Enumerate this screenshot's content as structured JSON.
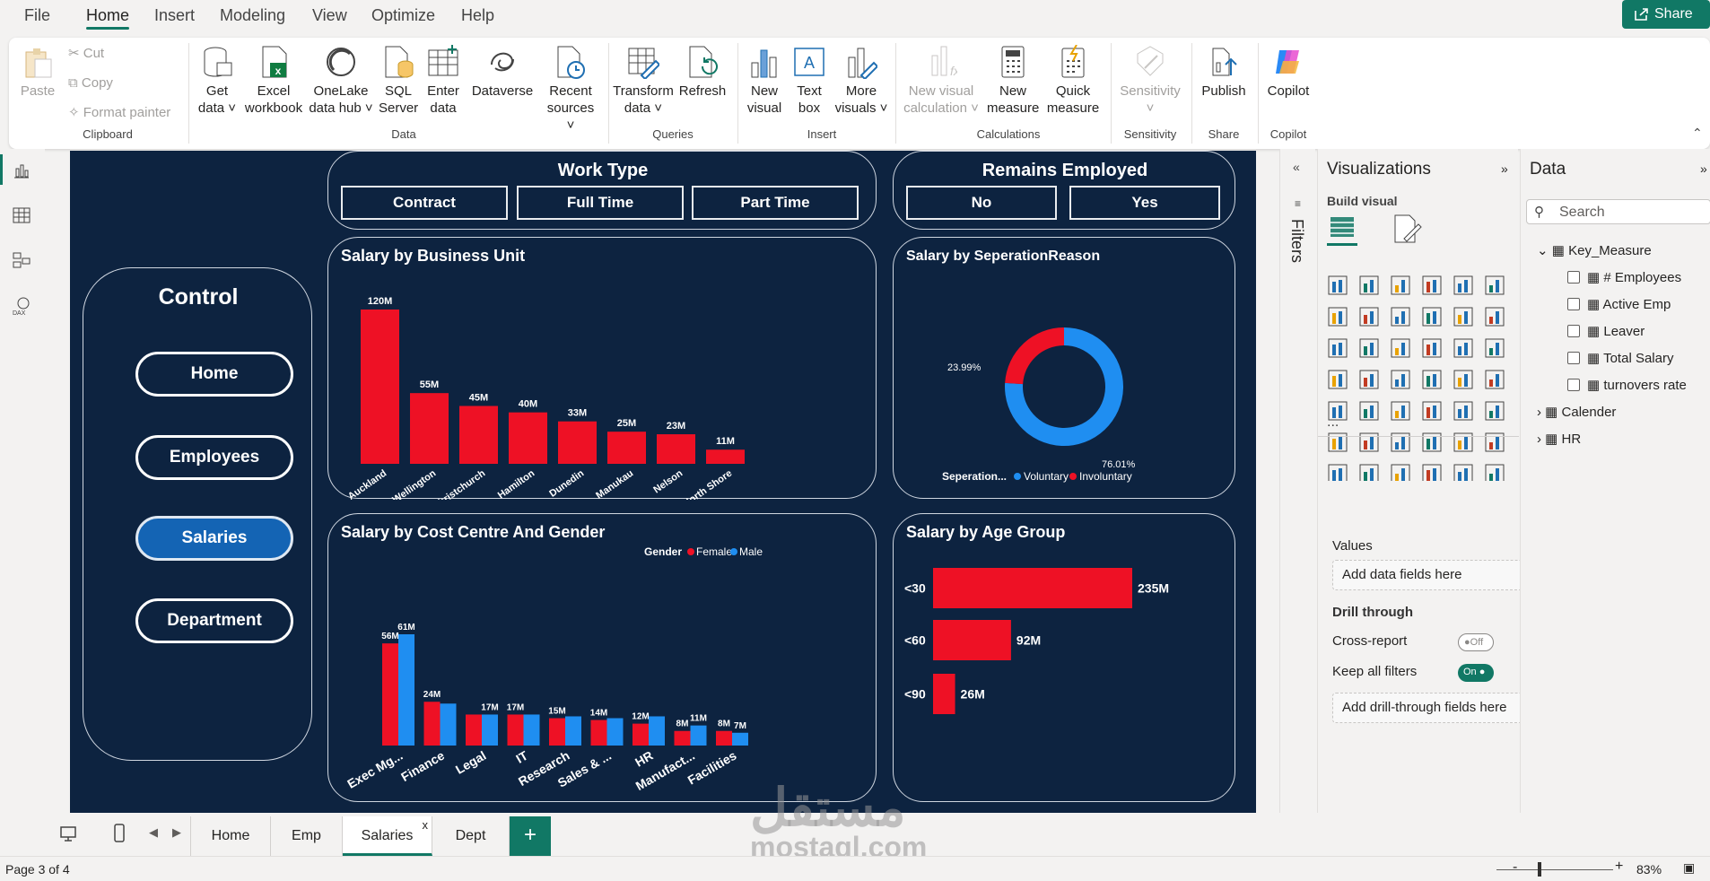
{
  "menu": {
    "items": [
      "File",
      "Home",
      "Insert",
      "Modeling",
      "View",
      "Optimize",
      "Help"
    ],
    "active": "Home",
    "share": "Share"
  },
  "ribbon": {
    "clipboard": {
      "paste": "Paste",
      "cut": "Cut",
      "copy": "Copy",
      "format_painter": "Format painter",
      "group": "Clipboard"
    },
    "data": {
      "get_data": [
        "Get",
        "data"
      ],
      "excel": [
        "Excel",
        "workbook"
      ],
      "onelake": [
        "OneLake",
        "data hub"
      ],
      "sql": [
        "SQL",
        "Server"
      ],
      "enter": [
        "Enter",
        "data"
      ],
      "dataverse": "Dataverse",
      "recent": [
        "Recent",
        "sources"
      ],
      "group": "Data"
    },
    "queries": {
      "transform": [
        "Transform",
        "data"
      ],
      "refresh": "Refresh",
      "group": "Queries"
    },
    "insert": {
      "new_visual": [
        "New",
        "visual"
      ],
      "text_box": [
        "Text",
        "box"
      ],
      "more_visuals": [
        "More",
        "visuals"
      ],
      "group": "Insert"
    },
    "calculations": {
      "new_visual_calc": [
        "New visual",
        "calculation"
      ],
      "new_measure": [
        "New",
        "measure"
      ],
      "quick_measure": [
        "Quick",
        "measure"
      ],
      "group": "Calculations"
    },
    "sensitivity": {
      "label": "Sensitivity",
      "group": "Sensitivity"
    },
    "share": {
      "publish": "Publish",
      "group": "Share"
    },
    "copilot": {
      "label": "Copilot",
      "group": "Copilot"
    }
  },
  "report": {
    "work_type": {
      "title": "Work Type",
      "options": [
        "Contract",
        "Full Time",
        "Part Time"
      ]
    },
    "remains_employed": {
      "title": "Remains Employed",
      "options": [
        "No",
        "Yes"
      ]
    },
    "control": {
      "title": "Control",
      "buttons": [
        "Home",
        "Employees",
        "Salaries",
        "Department"
      ],
      "selected": "Salaries"
    },
    "titles": {
      "business_unit": "Salary by Business Unit",
      "separation": "Salary by SeperationReason",
      "cost_centre": "Salary by Cost Centre And Gender",
      "age_group": "Salary by Age Group"
    },
    "colors": {
      "red": "#ee1125",
      "blue": "#1f8ef1",
      "bg": "#0d2340"
    }
  },
  "chart_data": [
    {
      "type": "bar",
      "title": "Salary by Business Unit",
      "categories": [
        "Auckland",
        "Wellington",
        "Christchurch",
        "Hamilton",
        "Dunedin",
        "Manukau",
        "Nelson",
        "North Shore"
      ],
      "values": [
        120,
        55,
        45,
        40,
        33,
        25,
        23,
        11
      ],
      "labels": [
        "120M",
        "55M",
        "45M",
        "40M",
        "33M",
        "25M",
        "23M",
        "11M"
      ]
    },
    {
      "type": "pie",
      "title": "Salary by SeperationReason",
      "legend_title": "Seperation...",
      "slices": [
        {
          "name": "Voluntary",
          "value": 76.01,
          "label": "76.01%"
        },
        {
          "name": "Involuntary",
          "value": 23.99,
          "label": "23.99%"
        }
      ]
    },
    {
      "type": "bar",
      "title": "Salary by Cost Centre And Gender",
      "legend_title": "Gender",
      "categories": [
        "Exec Mg...",
        "Finance",
        "Legal",
        "IT",
        "Research",
        "Sales & ...",
        "HR",
        "Manufact...",
        "Facilities"
      ],
      "series": [
        {
          "name": "Female",
          "values": [
            56,
            24,
            17,
            17,
            15,
            14,
            12,
            8,
            8
          ],
          "labels": [
            "56M",
            "24M",
            "",
            "17M",
            "15M",
            "14M",
            "12M",
            "8M",
            "8M"
          ]
        },
        {
          "name": "Male",
          "values": [
            61,
            23,
            17,
            17,
            16,
            15,
            16,
            11,
            7
          ],
          "labels": [
            "61M",
            "",
            "17M",
            "",
            "",
            "",
            "",
            "11M",
            "7M"
          ]
        }
      ]
    },
    {
      "type": "bar",
      "title": "Salary by Age Group",
      "orientation": "horizontal",
      "categories": [
        "<30",
        "<60",
        "<90"
      ],
      "values": [
        235,
        92,
        26
      ],
      "labels": [
        "235M",
        "92M",
        "26M"
      ]
    }
  ],
  "filters_label": "Filters",
  "visualizations": {
    "title": "Visualizations",
    "build": "Build visual",
    "values_label": "Values",
    "values_placeholder": "Add data fields here",
    "drill_through": "Drill through",
    "cross_report": "Cross-report",
    "cross_report_state": "Off",
    "keep_filters": "Keep all filters",
    "keep_filters_state": "On",
    "drill_placeholder": "Add drill-through fields here",
    "more": "..."
  },
  "data_pane": {
    "title": "Data",
    "search_placeholder": "Search",
    "tables": [
      {
        "name": "Key_Measure",
        "expanded": true,
        "fields": [
          "# Employees",
          "Active Emp",
          "Leaver",
          "Total Salary",
          "turnovers rate"
        ]
      },
      {
        "name": "Calender",
        "expanded": false
      },
      {
        "name": "HR",
        "expanded": false
      }
    ]
  },
  "tabs": {
    "items": [
      "Home",
      "Emp",
      "Salaries",
      "Dept"
    ],
    "selected": "Salaries",
    "close": "x",
    "add": "+"
  },
  "status": {
    "page": "Page 3 of 4",
    "zoom": "83%",
    "minus": "-",
    "plus": "+"
  },
  "watermark": {
    "arabic": "مستقل",
    "latin": "mostaql.com"
  }
}
